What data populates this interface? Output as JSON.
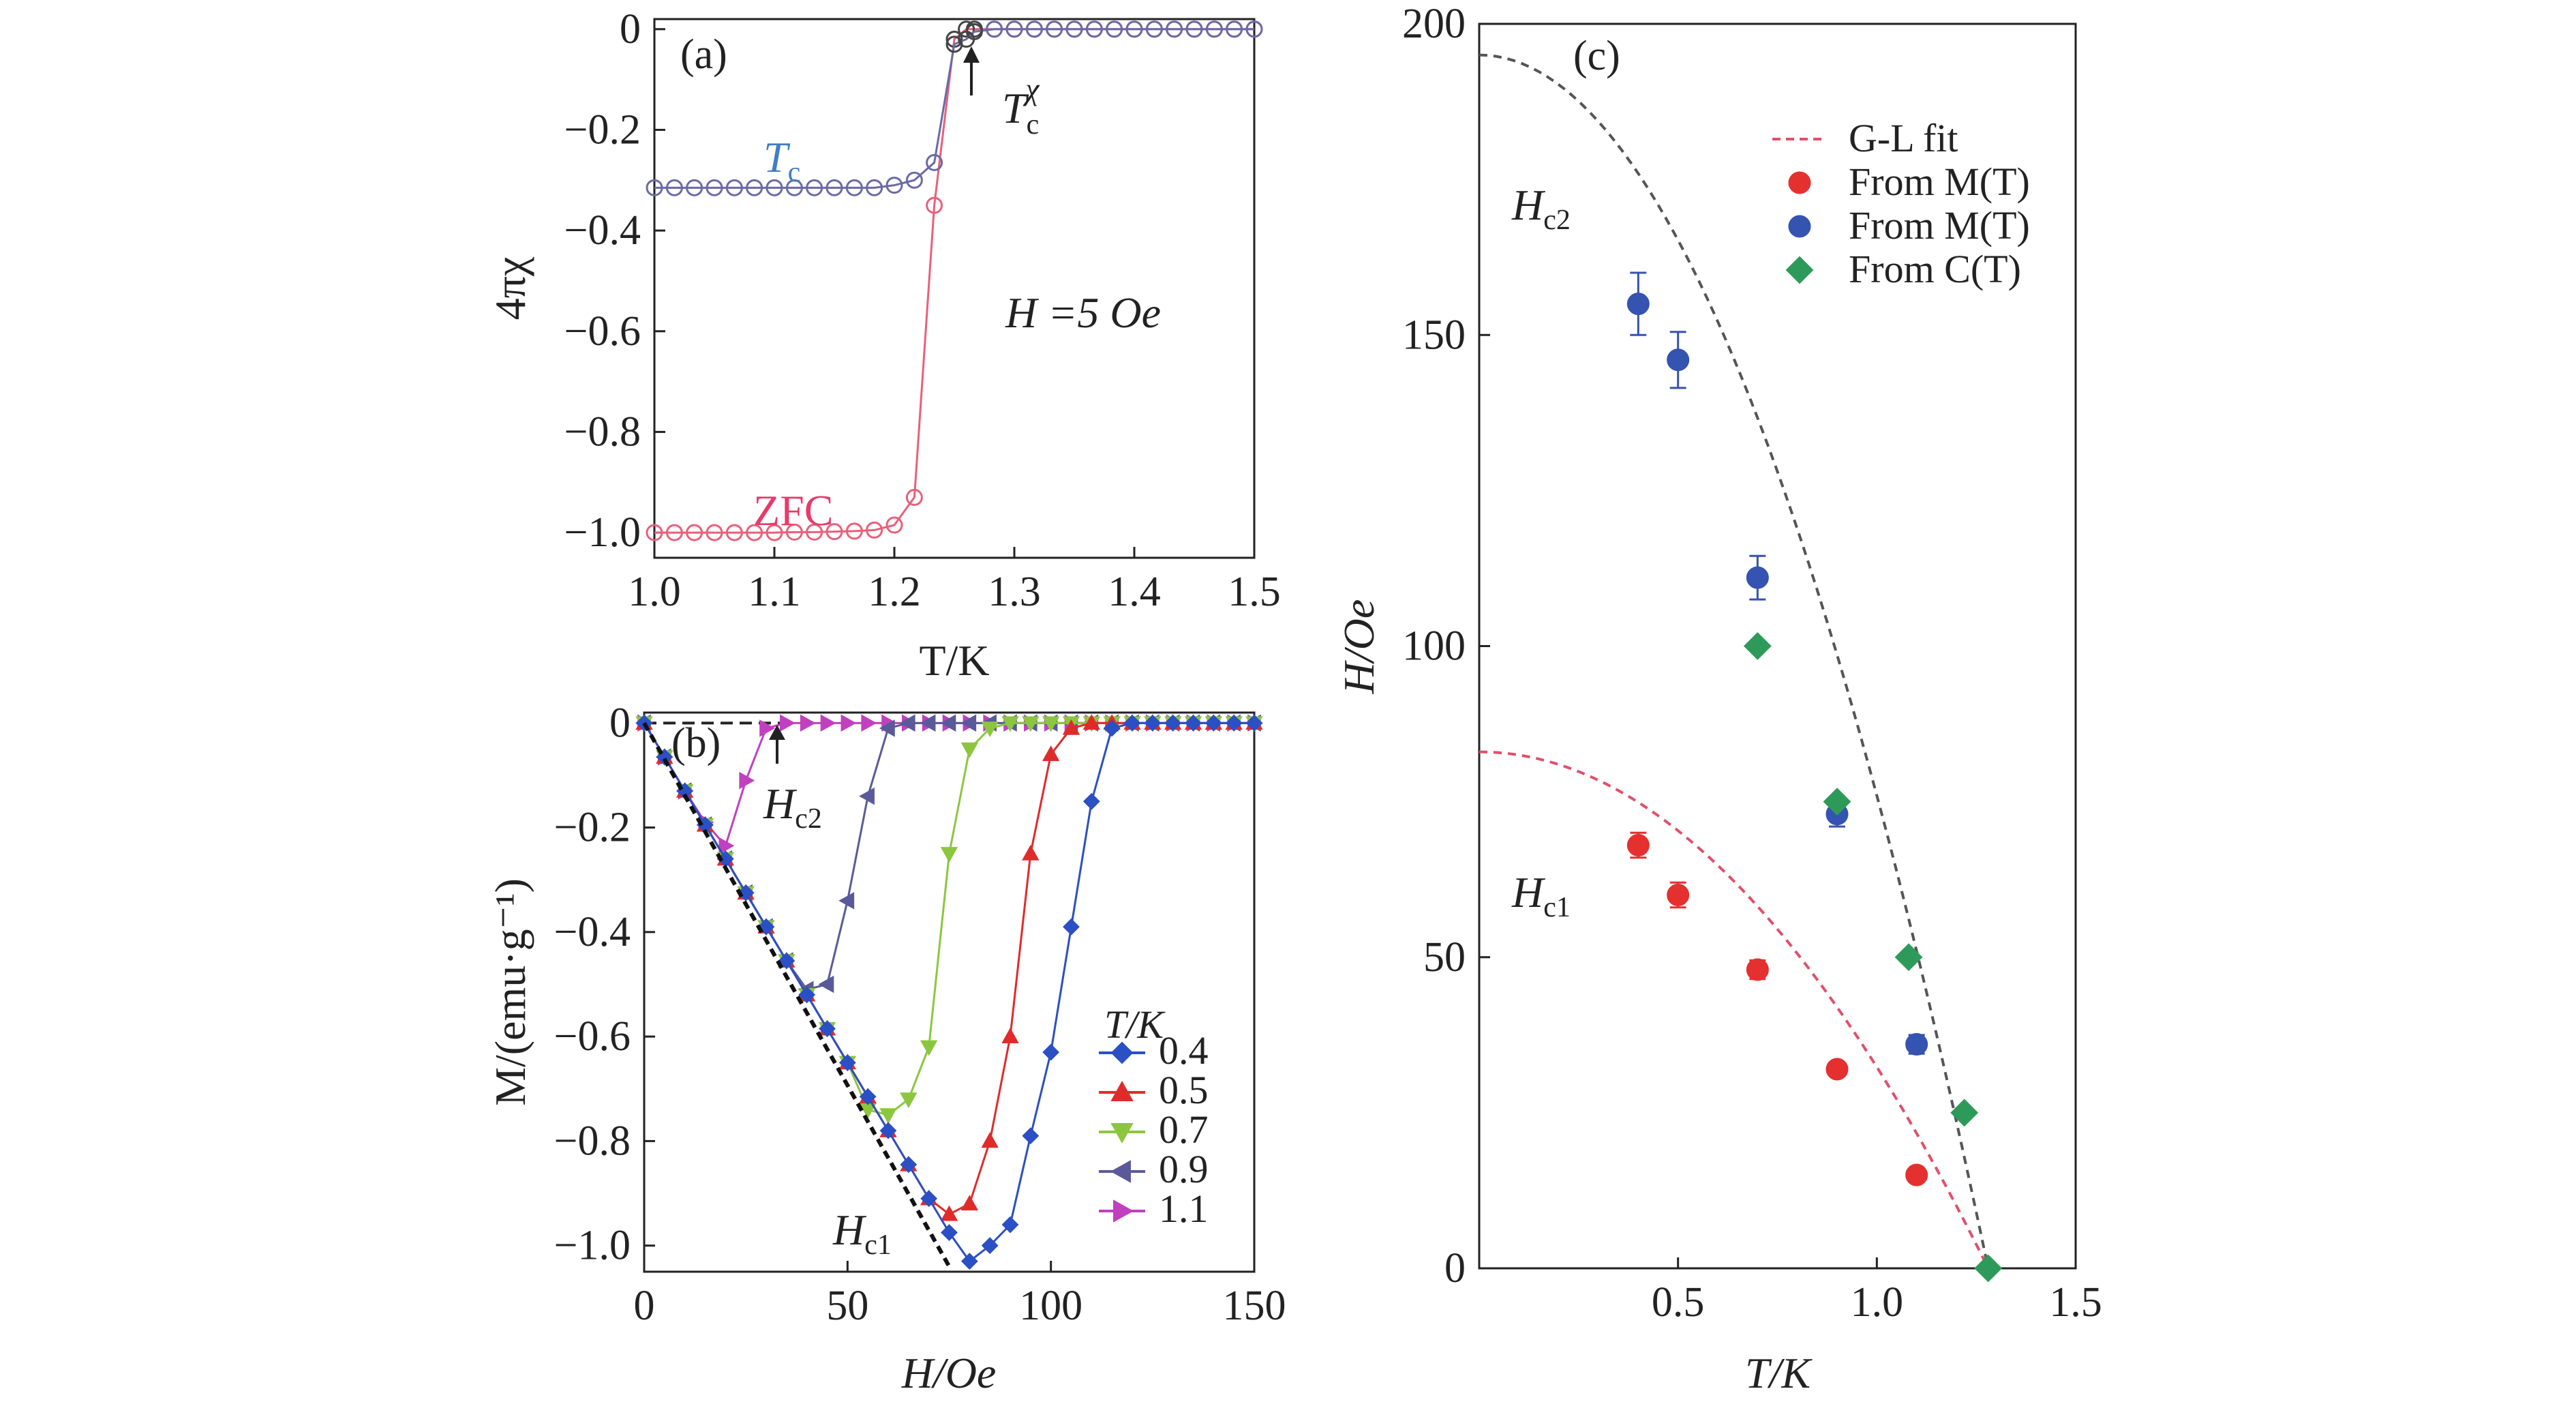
{
  "figure": {
    "colors": {
      "zfc": "#e8607a",
      "tc_curve": "#6a6aa8",
      "tc_label": "#3f7fc0",
      "zfc_label": "#e83a6a",
      "s04": "#2b4fc4",
      "s05": "#e02b2b",
      "s07": "#8cc63f",
      "s09": "#5a5a9a",
      "s11": "#c040c0",
      "red_pts": "#e53030",
      "blue_pts": "#3553b0",
      "green_pts": "#2e9a5a",
      "gl_fit_hc1": "#e0506a",
      "gl_fit_hc2": "#555555",
      "black": "#222222"
    }
  },
  "chart_data": [
    {
      "panel": "a",
      "type": "scatter",
      "panel_label": "(a)",
      "xlabel": "T/K",
      "ylabel": "4πχ",
      "xlim": [
        1.0,
        1.5
      ],
      "ylim": [
        -1.05,
        0.02
      ],
      "xticks": [
        1.0,
        1.1,
        1.2,
        1.3,
        1.4,
        1.5
      ],
      "xtick_labels": [
        "1.0",
        "1.1",
        "1.2",
        "1.3",
        "1.4",
        "1.5"
      ],
      "yticks": [
        0,
        -0.2,
        -0.4,
        -0.6,
        -0.8,
        -1.0
      ],
      "ytick_labels": [
        "0",
        "−0.2",
        "−0.4",
        "−0.6",
        "−0.8",
        "−1.0"
      ],
      "annotations": {
        "tc": "T",
        "tc_sub": "c",
        "tc_chi": "T",
        "tc_chi_sub": "c",
        "tc_chi_sup": "χ",
        "field": "H =5 Oe",
        "zfc": "ZFC"
      },
      "series": [
        {
          "name": "ZFC",
          "color_key": "zfc",
          "x": [
            1.0,
            1.0167,
            1.0333,
            1.05,
            1.0667,
            1.0833,
            1.1,
            1.1167,
            1.1333,
            1.15,
            1.1667,
            1.1833,
            1.2,
            1.2167,
            1.2333,
            1.25,
            1.26,
            1.2667,
            1.2833,
            1.3,
            1.3167,
            1.3333,
            1.35,
            1.3667,
            1.3833,
            1.4,
            1.4167,
            1.4333,
            1.45,
            1.4667,
            1.4833,
            1.5
          ],
          "y": [
            -1.0,
            -1.0,
            -1.0,
            -1.0,
            -1.0,
            -1.0,
            -1.0,
            -0.999,
            -0.999,
            -0.998,
            -0.997,
            -0.995,
            -0.985,
            -0.93,
            -0.35,
            -0.02,
            0.0,
            0.0,
            0.0,
            0.0,
            0.0,
            0.0,
            0.0,
            0.0,
            0.0,
            0.0,
            0.0,
            0.0,
            0.0,
            0.0,
            0.0,
            0.0
          ]
        },
        {
          "name": "Tc",
          "color_key": "tc_curve",
          "x": [
            1.0,
            1.0167,
            1.0333,
            1.05,
            1.0667,
            1.0833,
            1.1,
            1.1167,
            1.1333,
            1.15,
            1.1667,
            1.1833,
            1.2,
            1.2167,
            1.2333,
            1.25,
            1.26,
            1.2667,
            1.2833,
            1.3,
            1.3167,
            1.3333,
            1.35,
            1.3667,
            1.3833,
            1.4,
            1.4167,
            1.4333,
            1.45,
            1.4667,
            1.4833,
            1.5
          ],
          "y": [
            -0.315,
            -0.315,
            -0.315,
            -0.315,
            -0.315,
            -0.315,
            -0.315,
            -0.315,
            -0.315,
            -0.315,
            -0.315,
            -0.315,
            -0.31,
            -0.3,
            -0.265,
            -0.03,
            -0.02,
            -0.005,
            0.0,
            0.0,
            0.0,
            0.0,
            0.0,
            0.0,
            0.0,
            0.0,
            0.0,
            0.0,
            0.0,
            0.0,
            0.0,
            0.0
          ]
        }
      ]
    },
    {
      "panel": "b",
      "type": "line",
      "panel_label": "(b)",
      "xlabel": "H/Oe",
      "ylabel": "M/(emu·g⁻¹)",
      "xlim": [
        0,
        150
      ],
      "ylim": [
        -1.05,
        0.02
      ],
      "xticks": [
        0,
        50,
        100,
        150
      ],
      "xtick_labels": [
        "0",
        "50",
        "100",
        "150"
      ],
      "yticks": [
        0,
        -0.2,
        -0.4,
        -0.6,
        -0.8,
        -1.0
      ],
      "ytick_labels": [
        "0",
        "−0.2",
        "−0.4",
        "−0.6",
        "−0.8",
        "−1.0"
      ],
      "legend_title": "T/K",
      "legend_position": "bottom-right",
      "annotations": {
        "hc2": "H",
        "hc2_sub": "c2",
        "hc1": "H",
        "hc1_sub": "c1"
      },
      "series": [
        {
          "name": "0.4",
          "marker": "diamond",
          "color_key": "s04",
          "x": [
            0,
            5,
            10,
            15,
            20,
            25,
            30,
            35,
            40,
            45,
            50,
            55,
            60,
            65,
            70,
            75,
            80,
            85,
            90,
            95,
            100,
            105,
            110,
            115,
            120,
            125,
            130,
            135,
            140,
            145,
            150
          ],
          "y": [
            0,
            -0.065,
            -0.13,
            -0.195,
            -0.26,
            -0.325,
            -0.39,
            -0.455,
            -0.52,
            -0.585,
            -0.65,
            -0.715,
            -0.78,
            -0.845,
            -0.91,
            -0.975,
            -1.03,
            -1.0,
            -0.96,
            -0.79,
            -0.63,
            -0.39,
            -0.15,
            -0.01,
            0,
            0,
            0,
            0,
            0,
            0,
            0
          ]
        },
        {
          "name": "0.5",
          "marker": "triangle-up",
          "color_key": "s05",
          "x": [
            0,
            5,
            10,
            15,
            20,
            25,
            30,
            35,
            40,
            45,
            50,
            55,
            60,
            65,
            70,
            75,
            80,
            85,
            90,
            95,
            100,
            105,
            110,
            115,
            120,
            125,
            130,
            135,
            140,
            145,
            150
          ],
          "y": [
            0,
            -0.065,
            -0.13,
            -0.195,
            -0.26,
            -0.325,
            -0.39,
            -0.455,
            -0.52,
            -0.585,
            -0.65,
            -0.715,
            -0.78,
            -0.845,
            -0.91,
            -0.94,
            -0.92,
            -0.8,
            -0.6,
            -0.25,
            -0.06,
            -0.01,
            0,
            0,
            0,
            0,
            0,
            0,
            0,
            0,
            0
          ]
        },
        {
          "name": "0.7",
          "marker": "triangle-down",
          "color_key": "s07",
          "x": [
            0,
            5,
            10,
            15,
            20,
            25,
            30,
            35,
            40,
            45,
            50,
            55,
            60,
            65,
            70,
            75,
            80,
            85,
            90,
            95,
            100,
            105,
            110,
            115,
            120,
            125,
            130,
            135,
            140,
            145,
            150
          ],
          "y": [
            0,
            -0.065,
            -0.13,
            -0.195,
            -0.26,
            -0.325,
            -0.39,
            -0.455,
            -0.52,
            -0.585,
            -0.65,
            -0.74,
            -0.75,
            -0.72,
            -0.62,
            -0.25,
            -0.05,
            -0.01,
            0,
            0,
            0,
            0,
            0,
            0,
            0,
            0,
            0,
            0,
            0,
            0,
            0
          ]
        },
        {
          "name": "0.9",
          "marker": "triangle-left",
          "color_key": "s09",
          "x": [
            0,
            5,
            10,
            15,
            20,
            25,
            30,
            35,
            40,
            45,
            50,
            55,
            60,
            65,
            70,
            75,
            80,
            85,
            90,
            95,
            100,
            105,
            110,
            115,
            120,
            125,
            130,
            135,
            140,
            145,
            150
          ],
          "y": [
            0,
            -0.065,
            -0.13,
            -0.195,
            -0.26,
            -0.325,
            -0.39,
            -0.455,
            -0.51,
            -0.5,
            -0.34,
            -0.14,
            -0.01,
            0,
            0,
            0,
            0,
            0,
            0,
            0,
            0,
            0,
            0,
            0,
            0,
            0,
            0,
            0,
            0,
            0,
            0
          ]
        },
        {
          "name": "1.1",
          "marker": "triangle-right",
          "color_key": "s11",
          "x": [
            0,
            5,
            10,
            15,
            20,
            25,
            30,
            35,
            40,
            45,
            50,
            55,
            60,
            65,
            70,
            75,
            80,
            85,
            90,
            95,
            100,
            105,
            110,
            115,
            120,
            125,
            130,
            135,
            140,
            145,
            150
          ],
          "y": [
            0,
            -0.065,
            -0.13,
            -0.19,
            -0.235,
            -0.11,
            -0.01,
            0,
            0,
            0,
            0,
            0,
            0,
            0,
            0,
            0,
            0,
            0,
            0,
            0,
            0,
            0,
            0,
            0,
            0,
            0,
            0,
            0,
            0,
            0,
            0
          ]
        }
      ],
      "reference_line": {
        "name": "Hc1 slope",
        "x": [
          0,
          75
        ],
        "y": [
          0,
          -1.04
        ]
      }
    },
    {
      "panel": "c",
      "type": "scatter",
      "panel_label": "(c)",
      "xlabel": "T/K",
      "ylabel": "H/Oe",
      "xlim": [
        0,
        1.5
      ],
      "ylim": [
        0,
        200
      ],
      "xticks": [
        0.5,
        1.0,
        1.5
      ],
      "xtick_labels": [
        "0.5",
        "1.0",
        "1.5"
      ],
      "yticks": [
        0,
        50,
        100,
        150,
        200
      ],
      "ytick_labels": [
        "0",
        "50",
        "100",
        "150",
        "200"
      ],
      "legend_position": "top-right",
      "legend": [
        {
          "label": "G-L fit",
          "kind": "dashed",
          "color_key": "gl_fit_hc1"
        },
        {
          "label": "From M(T)",
          "kind": "circle",
          "color_key": "red_pts"
        },
        {
          "label": "From M(T)",
          "kind": "circle",
          "color_key": "blue_pts"
        },
        {
          "label": "From C(T)",
          "kind": "diamond",
          "color_key": "green_pts"
        }
      ],
      "annotations": {
        "hc2": "H",
        "hc2_sub": "c2",
        "hc1": "H",
        "hc1_sub": "c1"
      },
      "tc": 1.28,
      "hc1_fit_h0": 83,
      "hc2_fit_h0": 195,
      "hc1_points": {
        "T": [
          0.4,
          0.5,
          0.7,
          0.9,
          1.1
        ],
        "H": [
          68,
          60,
          48,
          32,
          15
        ],
        "err": [
          2,
          2,
          1.5,
          1,
          1
        ]
      },
      "hc2_points_mt": {
        "T": [
          0.4,
          0.5,
          0.7,
          0.9,
          1.1
        ],
        "H": [
          155,
          146,
          111,
          73,
          36
        ],
        "err": [
          5,
          4.5,
          3.5,
          2,
          1.5
        ]
      },
      "hc2_points_ct": {
        "T": [
          0.7,
          0.9,
          1.08,
          1.22,
          1.28
        ],
        "H": [
          100,
          75,
          50,
          25,
          0
        ]
      }
    }
  ]
}
